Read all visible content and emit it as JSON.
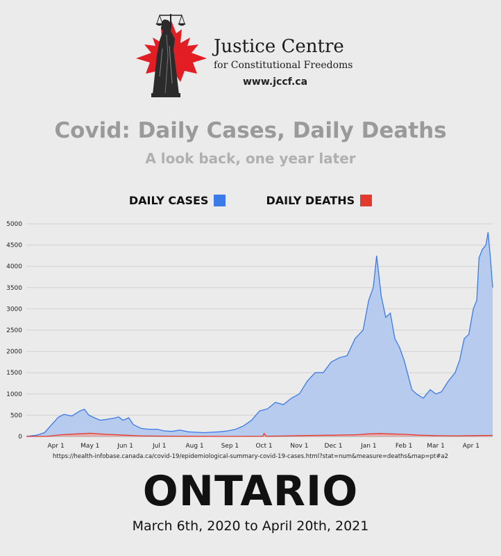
{
  "header": {
    "org_name": "Justice Centre",
    "org_subtitle": "for Constitutional Freedoms",
    "org_url": "www.jccf.ca"
  },
  "title": "Covid: Daily Cases, Daily Deaths",
  "subtitle": "A look back, one year later",
  "legend": [
    {
      "label": "DAILY CASES",
      "color": "#3b7ae8"
    },
    {
      "label": "DAILY DEATHS",
      "color": "#e23b2e"
    }
  ],
  "source": "https://health-infobase.canada.ca/covid-19/epidemiological-summary-covid-19-cases.html?stat=num&measure=deaths&map=pt#a2",
  "region": "ONTARIO",
  "date_range": "March 6th, 2020 to April 20th, 2021",
  "chart_data": {
    "type": "area",
    "ylim": [
      0,
      5000
    ],
    "yticks": [
      0,
      500,
      1000,
      1500,
      2000,
      2500,
      3000,
      3500,
      4000,
      4500,
      5000
    ],
    "xlim": [
      "2020-03-06",
      "2021-04-20"
    ],
    "xticks": [
      {
        "date": "2020-04-01",
        "label": "Apr 1"
      },
      {
        "date": "2020-05-01",
        "label": "May 1"
      },
      {
        "date": "2020-06-01",
        "label": "Jun 1"
      },
      {
        "date": "2020-07-01",
        "label": "Jul 1"
      },
      {
        "date": "2020-08-01",
        "label": "Aug 1"
      },
      {
        "date": "2020-09-01",
        "label": "Sep 1"
      },
      {
        "date": "2020-10-01",
        "label": "Oct 1"
      },
      {
        "date": "2020-11-01",
        "label": "Nov 1"
      },
      {
        "date": "2020-12-01",
        "label": "Dec 1"
      },
      {
        "date": "2021-01-01",
        "label": "Jan 1"
      },
      {
        "date": "2021-02-01",
        "label": "Feb 1"
      },
      {
        "date": "2021-03-01",
        "label": "Mar 1"
      },
      {
        "date": "2021-04-01",
        "label": "Apr 1"
      }
    ],
    "grid": true,
    "series": [
      {
        "name": "DAILY CASES",
        "color": "#3b7ae8",
        "fill": "#b3c9ee",
        "points": [
          [
            "2020-03-06",
            2
          ],
          [
            "2020-03-15",
            30
          ],
          [
            "2020-03-22",
            90
          ],
          [
            "2020-03-29",
            300
          ],
          [
            "2020-04-03",
            450
          ],
          [
            "2020-04-08",
            520
          ],
          [
            "2020-04-15",
            480
          ],
          [
            "2020-04-22",
            600
          ],
          [
            "2020-04-26",
            640
          ],
          [
            "2020-04-30",
            500
          ],
          [
            "2020-05-04",
            450
          ],
          [
            "2020-05-10",
            380
          ],
          [
            "2020-05-15",
            400
          ],
          [
            "2020-05-22",
            430
          ],
          [
            "2020-05-26",
            460
          ],
          [
            "2020-05-30",
            380
          ],
          [
            "2020-06-04",
            440
          ],
          [
            "2020-06-08",
            280
          ],
          [
            "2020-06-15",
            190
          ],
          [
            "2020-06-22",
            170
          ],
          [
            "2020-06-29",
            170
          ],
          [
            "2020-07-05",
            130
          ],
          [
            "2020-07-12",
            120
          ],
          [
            "2020-07-19",
            150
          ],
          [
            "2020-07-26",
            110
          ],
          [
            "2020-08-02",
            100
          ],
          [
            "2020-08-09",
            90
          ],
          [
            "2020-08-16",
            100
          ],
          [
            "2020-08-23",
            110
          ],
          [
            "2020-08-30",
            130
          ],
          [
            "2020-09-06",
            170
          ],
          [
            "2020-09-13",
            250
          ],
          [
            "2020-09-20",
            380
          ],
          [
            "2020-09-27",
            600
          ],
          [
            "2020-10-04",
            650
          ],
          [
            "2020-10-11",
            800
          ],
          [
            "2020-10-18",
            750
          ],
          [
            "2020-10-25",
            900
          ],
          [
            "2020-11-01",
            1000
          ],
          [
            "2020-11-08",
            1300
          ],
          [
            "2020-11-15",
            1500
          ],
          [
            "2020-11-22",
            1500
          ],
          [
            "2020-11-29",
            1750
          ],
          [
            "2020-12-06",
            1850
          ],
          [
            "2020-12-13",
            1900
          ],
          [
            "2020-12-20",
            2300
          ],
          [
            "2020-12-27",
            2500
          ],
          [
            "2021-01-01",
            3200
          ],
          [
            "2021-01-05",
            3500
          ],
          [
            "2021-01-08",
            4250
          ],
          [
            "2021-01-12",
            3300
          ],
          [
            "2021-01-16",
            2800
          ],
          [
            "2021-01-20",
            2900
          ],
          [
            "2021-01-24",
            2300
          ],
          [
            "2021-01-28",
            2100
          ],
          [
            "2021-02-01",
            1800
          ],
          [
            "2021-02-04",
            1500
          ],
          [
            "2021-02-08",
            1100
          ],
          [
            "2021-02-12",
            1000
          ],
          [
            "2021-02-18",
            900
          ],
          [
            "2021-02-24",
            1100
          ],
          [
            "2021-03-01",
            1000
          ],
          [
            "2021-03-06",
            1050
          ],
          [
            "2021-03-12",
            1300
          ],
          [
            "2021-03-18",
            1500
          ],
          [
            "2021-03-22",
            1800
          ],
          [
            "2021-03-26",
            2300
          ],
          [
            "2021-03-30",
            2400
          ],
          [
            "2021-04-03",
            3000
          ],
          [
            "2021-04-06",
            3200
          ],
          [
            "2021-04-08",
            4200
          ],
          [
            "2021-04-11",
            4400
          ],
          [
            "2021-04-14",
            4500
          ],
          [
            "2021-04-16",
            4800
          ],
          [
            "2021-04-18",
            4200
          ],
          [
            "2021-04-20",
            3500
          ]
        ]
      },
      {
        "name": "DAILY DEATHS",
        "color": "#e23b2e",
        "fill": "#e9a9a4",
        "points": [
          [
            "2020-03-06",
            0
          ],
          [
            "2020-03-25",
            5
          ],
          [
            "2020-04-05",
            40
          ],
          [
            "2020-04-20",
            60
          ],
          [
            "2020-05-01",
            75
          ],
          [
            "2020-05-15",
            50
          ],
          [
            "2020-06-01",
            30
          ],
          [
            "2020-06-15",
            15
          ],
          [
            "2020-07-01",
            8
          ],
          [
            "2020-08-01",
            4
          ],
          [
            "2020-09-01",
            2
          ],
          [
            "2020-09-30",
            5
          ],
          [
            "2020-10-01",
            70
          ],
          [
            "2020-10-03",
            5
          ],
          [
            "2020-10-15",
            10
          ],
          [
            "2020-11-01",
            20
          ],
          [
            "2020-12-01",
            30
          ],
          [
            "2020-12-20",
            40
          ],
          [
            "2021-01-01",
            60
          ],
          [
            "2021-01-10",
            70
          ],
          [
            "2021-01-20",
            60
          ],
          [
            "2021-02-01",
            50
          ],
          [
            "2021-02-15",
            30
          ],
          [
            "2021-03-01",
            20
          ],
          [
            "2021-03-20",
            15
          ],
          [
            "2021-04-01",
            20
          ],
          [
            "2021-04-20",
            25
          ]
        ]
      }
    ]
  }
}
